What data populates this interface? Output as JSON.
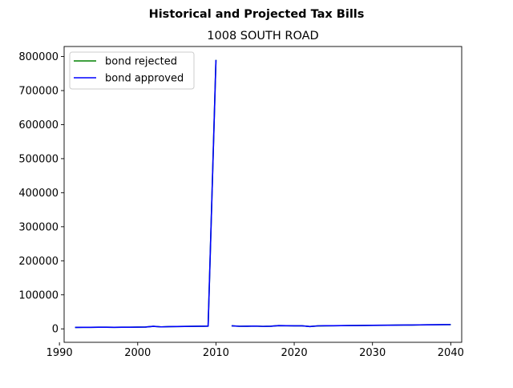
{
  "figure": {
    "suptitle": "Historical and Projected Tax Bills"
  },
  "chart_data": {
    "type": "line",
    "title": "1008 SOUTH ROAD",
    "xlabel": "",
    "ylabel": "",
    "xlim": [
      1990.6,
      2041.4
    ],
    "ylim": [
      -39500,
      829500
    ],
    "xticks": [
      1990,
      2000,
      2010,
      2020,
      2030,
      2040
    ],
    "yticks": [
      0,
      100000,
      200000,
      300000,
      400000,
      500000,
      600000,
      700000,
      800000
    ],
    "grid": false,
    "legend_position": "upper left",
    "series": [
      {
        "name": "bond rejected",
        "color": "#008000",
        "segments": [
          [
            [
              1992,
              4200
            ],
            [
              1993,
              4400
            ],
            [
              1994,
              4600
            ],
            [
              1995,
              4700
            ],
            [
              1996,
              4800
            ],
            [
              1997,
              4500
            ],
            [
              1998,
              4700
            ],
            [
              1999,
              4900
            ],
            [
              2000,
              5100
            ],
            [
              2001,
              5300
            ],
            [
              2002,
              7500
            ],
            [
              2003,
              5800
            ],
            [
              2004,
              6600
            ],
            [
              2005,
              6900
            ],
            [
              2006,
              7200
            ],
            [
              2007,
              7400
            ],
            [
              2008,
              7700
            ],
            [
              2009,
              8000
            ],
            [
              2010,
              790000
            ]
          ],
          [
            [
              2012,
              9000
            ],
            [
              2013,
              7600
            ],
            [
              2014,
              7800
            ],
            [
              2015,
              8200
            ],
            [
              2016,
              7300
            ],
            [
              2017,
              7700
            ],
            [
              2018,
              9600
            ],
            [
              2019,
              9300
            ],
            [
              2020,
              8900
            ],
            [
              2021,
              9000
            ],
            [
              2022,
              6900
            ],
            [
              2023,
              8700
            ],
            [
              2024,
              9000
            ],
            [
              2025,
              9200
            ],
            [
              2026,
              9400
            ],
            [
              2027,
              9600
            ],
            [
              2028,
              9800
            ],
            [
              2029,
              10000
            ],
            [
              2030,
              10300
            ],
            [
              2031,
              10500
            ],
            [
              2032,
              10700
            ],
            [
              2033,
              10900
            ],
            [
              2034,
              11100
            ],
            [
              2035,
              11300
            ],
            [
              2036,
              11600
            ],
            [
              2037,
              11800
            ],
            [
              2038,
              12000
            ],
            [
              2039,
              12300
            ],
            [
              2040,
              12500
            ]
          ]
        ]
      },
      {
        "name": "bond approved",
        "color": "#0000ff",
        "segments": [
          [
            [
              1992,
              4200
            ],
            [
              1993,
              4400
            ],
            [
              1994,
              4600
            ],
            [
              1995,
              4700
            ],
            [
              1996,
              4800
            ],
            [
              1997,
              4500
            ],
            [
              1998,
              4700
            ],
            [
              1999,
              4900
            ],
            [
              2000,
              5100
            ],
            [
              2001,
              5300
            ],
            [
              2002,
              7500
            ],
            [
              2003,
              5800
            ],
            [
              2004,
              6600
            ],
            [
              2005,
              6900
            ],
            [
              2006,
              7200
            ],
            [
              2007,
              7400
            ],
            [
              2008,
              7700
            ],
            [
              2009,
              8000
            ],
            [
              2010,
              790000
            ]
          ],
          [
            [
              2012,
              9000
            ],
            [
              2013,
              7600
            ],
            [
              2014,
              7800
            ],
            [
              2015,
              8200
            ],
            [
              2016,
              7300
            ],
            [
              2017,
              7700
            ],
            [
              2018,
              9600
            ],
            [
              2019,
              9300
            ],
            [
              2020,
              8900
            ],
            [
              2021,
              9000
            ],
            [
              2022,
              6900
            ],
            [
              2023,
              8800
            ],
            [
              2024,
              9100
            ],
            [
              2025,
              9300
            ],
            [
              2026,
              9500
            ],
            [
              2027,
              9700
            ],
            [
              2028,
              9900
            ],
            [
              2029,
              10100
            ],
            [
              2030,
              10400
            ],
            [
              2031,
              10600
            ],
            [
              2032,
              10800
            ],
            [
              2033,
              11000
            ],
            [
              2034,
              11200
            ],
            [
              2035,
              11400
            ],
            [
              2036,
              11700
            ],
            [
              2037,
              11900
            ],
            [
              2038,
              12100
            ],
            [
              2039,
              12400
            ],
            [
              2040,
              12600
            ]
          ]
        ]
      }
    ]
  }
}
